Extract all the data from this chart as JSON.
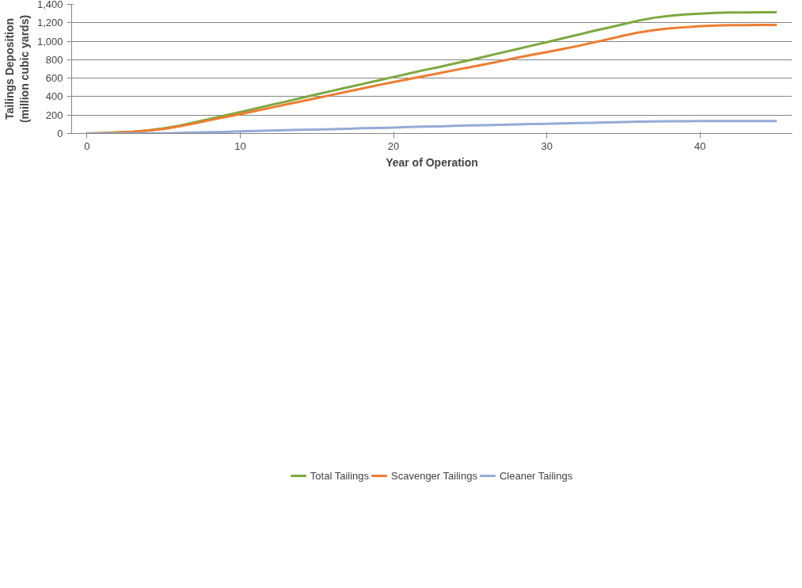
{
  "chart_data": {
    "type": "line",
    "xlabel": "Year of Operation",
    "ylabel": "Tailings Deposition\n(million cubic yards)",
    "x": [
      0,
      1,
      2,
      3,
      4,
      5,
      6,
      7,
      8,
      9,
      10,
      11,
      12,
      13,
      14,
      15,
      16,
      17,
      18,
      19,
      20,
      21,
      22,
      23,
      24,
      25,
      26,
      27,
      28,
      29,
      30,
      31,
      32,
      33,
      34,
      35,
      36,
      37,
      38,
      39,
      40,
      41,
      42,
      43,
      44,
      45
    ],
    "series": [
      {
        "name": "Total Tailings",
        "color": "#7ea83f",
        "values": [
          0,
          5,
          12,
          20,
          35,
          55,
          85,
          120,
          158,
          195,
          232,
          270,
          310,
          347,
          387,
          425,
          463,
          500,
          538,
          575,
          613,
          650,
          688,
          722,
          760,
          797,
          835,
          875,
          912,
          952,
          990,
          1030,
          1070,
          1110,
          1147,
          1185,
          1225,
          1255,
          1275,
          1290,
          1300,
          1308,
          1313,
          1313,
          1314,
          1314
        ]
      },
      {
        "name": "Scavenger Tailings",
        "color": "#ed7d31",
        "values": [
          0,
          5,
          11,
          19,
          33,
          50,
          78,
          110,
          145,
          178,
          211,
          245,
          280,
          315,
          350,
          385,
          420,
          455,
          490,
          525,
          558,
          590,
          622,
          655,
          688,
          720,
          752,
          785,
          820,
          852,
          883,
          915,
          948,
          985,
          1022,
          1060,
          1096,
          1120,
          1140,
          1152,
          1163,
          1170,
          1174,
          1175,
          1177,
          1177
        ]
      },
      {
        "name": "Cleaner Tailings",
        "color": "#95abd6",
        "values": [
          0,
          0,
          1,
          1,
          2,
          3,
          6,
          10,
          15,
          18,
          23,
          28,
          33,
          36,
          41,
          44,
          47,
          52,
          57,
          60,
          65,
          70,
          75,
          78,
          83,
          87,
          90,
          95,
          98,
          103,
          106,
          110,
          114,
          117,
          121,
          124,
          128,
          131,
          133,
          134,
          135,
          136,
          136,
          136,
          136,
          136
        ]
      }
    ],
    "xlim": [
      -1,
      46
    ],
    "xticks": [
      0,
      10,
      20,
      30,
      40
    ],
    "ylim": [
      0,
      1400
    ],
    "yticks": [
      {
        "value": 0,
        "label": "0"
      },
      {
        "value": 200,
        "label": "200"
      },
      {
        "value": 400,
        "label": "400"
      },
      {
        "value": 600,
        "label": "600"
      },
      {
        "value": 800,
        "label": "800"
      },
      {
        "value": 1000,
        "label": "1,000"
      },
      {
        "value": 1200,
        "label": "1,200"
      },
      {
        "value": 1400,
        "label": "1,400"
      }
    ],
    "grid": "y",
    "legend": "bottom",
    "line_style": "solid"
  }
}
